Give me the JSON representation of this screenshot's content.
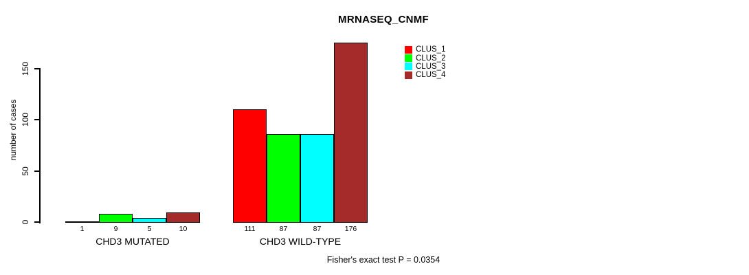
{
  "chart_data": {
    "type": "bar",
    "title": "MRNASEQ_CNMF",
    "ylabel": "number of cases",
    "xlabel": "",
    "categories": [
      "CHD3 MUTATED",
      "CHD3 WILD-TYPE"
    ],
    "series": [
      {
        "name": "CLUS_1",
        "color": "#FF0000",
        "values": [
          1,
          111
        ]
      },
      {
        "name": "CLUS_2",
        "color": "#00FF00",
        "values": [
          9,
          87
        ]
      },
      {
        "name": "CLUS_3",
        "color": "#00FFFF",
        "values": [
          5,
          87
        ]
      },
      {
        "name": "CLUS_4",
        "color": "#A52A2A",
        "values": [
          10,
          176
        ]
      }
    ],
    "y_ticks": [
      0,
      50,
      100,
      150
    ],
    "ylim": [
      0,
      176
    ],
    "show_bar_values": true,
    "grid": false,
    "legend_position": "top-right-inside",
    "annotation": "Fisher's exact test P = 0.0354",
    "axis_color": "#000000",
    "background": "#FFFFFF"
  }
}
